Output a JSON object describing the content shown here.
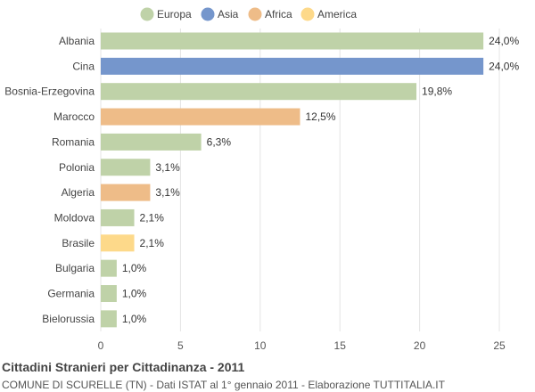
{
  "chart_data": {
    "type": "bar",
    "orientation": "horizontal",
    "categories": [
      "Albania",
      "Cina",
      "Bosnia-Erzegovina",
      "Marocco",
      "Romania",
      "Polonia",
      "Algeria",
      "Moldova",
      "Brasile",
      "Bulgaria",
      "Germania",
      "Bielorussia"
    ],
    "values": [
      24.0,
      24.0,
      19.8,
      12.5,
      6.3,
      3.1,
      3.1,
      2.1,
      2.1,
      1.0,
      1.0,
      1.0
    ],
    "value_labels": [
      "24,0%",
      "24,0%",
      "19,8%",
      "12,5%",
      "6,3%",
      "3,1%",
      "3,1%",
      "2,1%",
      "2,1%",
      "1,0%",
      "1,0%",
      "1,0%"
    ],
    "bar_groups": [
      "Europa",
      "Asia",
      "Europa",
      "Africa",
      "Europa",
      "Europa",
      "Africa",
      "Europa",
      "America",
      "Europa",
      "Europa",
      "Europa"
    ],
    "legend": [
      {
        "name": "Europa",
        "color": "#bfd2a8"
      },
      {
        "name": "Asia",
        "color": "#7596cc"
      },
      {
        "name": "Africa",
        "color": "#eebc88"
      },
      {
        "name": "America",
        "color": "#fdd98a"
      }
    ],
    "legend_position": "top-center",
    "xlim": [
      0,
      25
    ],
    "xticks": [
      0,
      5,
      10,
      15,
      20,
      25
    ],
    "grid": true
  },
  "footer": {
    "title": "Cittadini Stranieri per Cittadinanza - 2011",
    "subtitle": "COMUNE DI SCURELLE (TN) - Dati ISTAT al 1° gennaio 2011 - Elaborazione TUTTITALIA.IT"
  }
}
